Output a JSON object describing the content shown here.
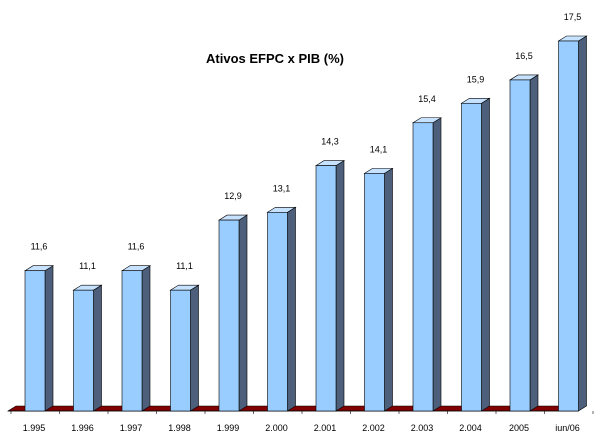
{
  "chart_data": {
    "type": "bar",
    "title": "Ativos EFPC x PIB (%)",
    "xlabel": "",
    "ylabel": "",
    "categories": [
      "1.995",
      "1.996",
      "1.997",
      "1.998",
      "1.999",
      "2.000",
      "2.001",
      "2.002",
      "2.003",
      "2.004",
      "2005",
      "jun/06"
    ],
    "values": [
      11.6,
      11.1,
      11.6,
      11.1,
      12.9,
      13.1,
      14.3,
      14.1,
      15.4,
      15.9,
      16.5,
      17.5
    ],
    "value_labels": [
      "11,6",
      "11,1",
      "11,6",
      "11,1",
      "12,9",
      "13,1",
      "14,3",
      "14,1",
      "15,4",
      "15,9",
      "16,5",
      "17,5"
    ],
    "ylim": [
      10,
      17.5
    ],
    "grid": false,
    "legend": "none",
    "colors": {
      "bar_front": "#99ccff",
      "bar_top": "#c6e2ff",
      "bar_side": "#4d5f7a",
      "floor": "#800000",
      "outline": "#000000"
    }
  }
}
